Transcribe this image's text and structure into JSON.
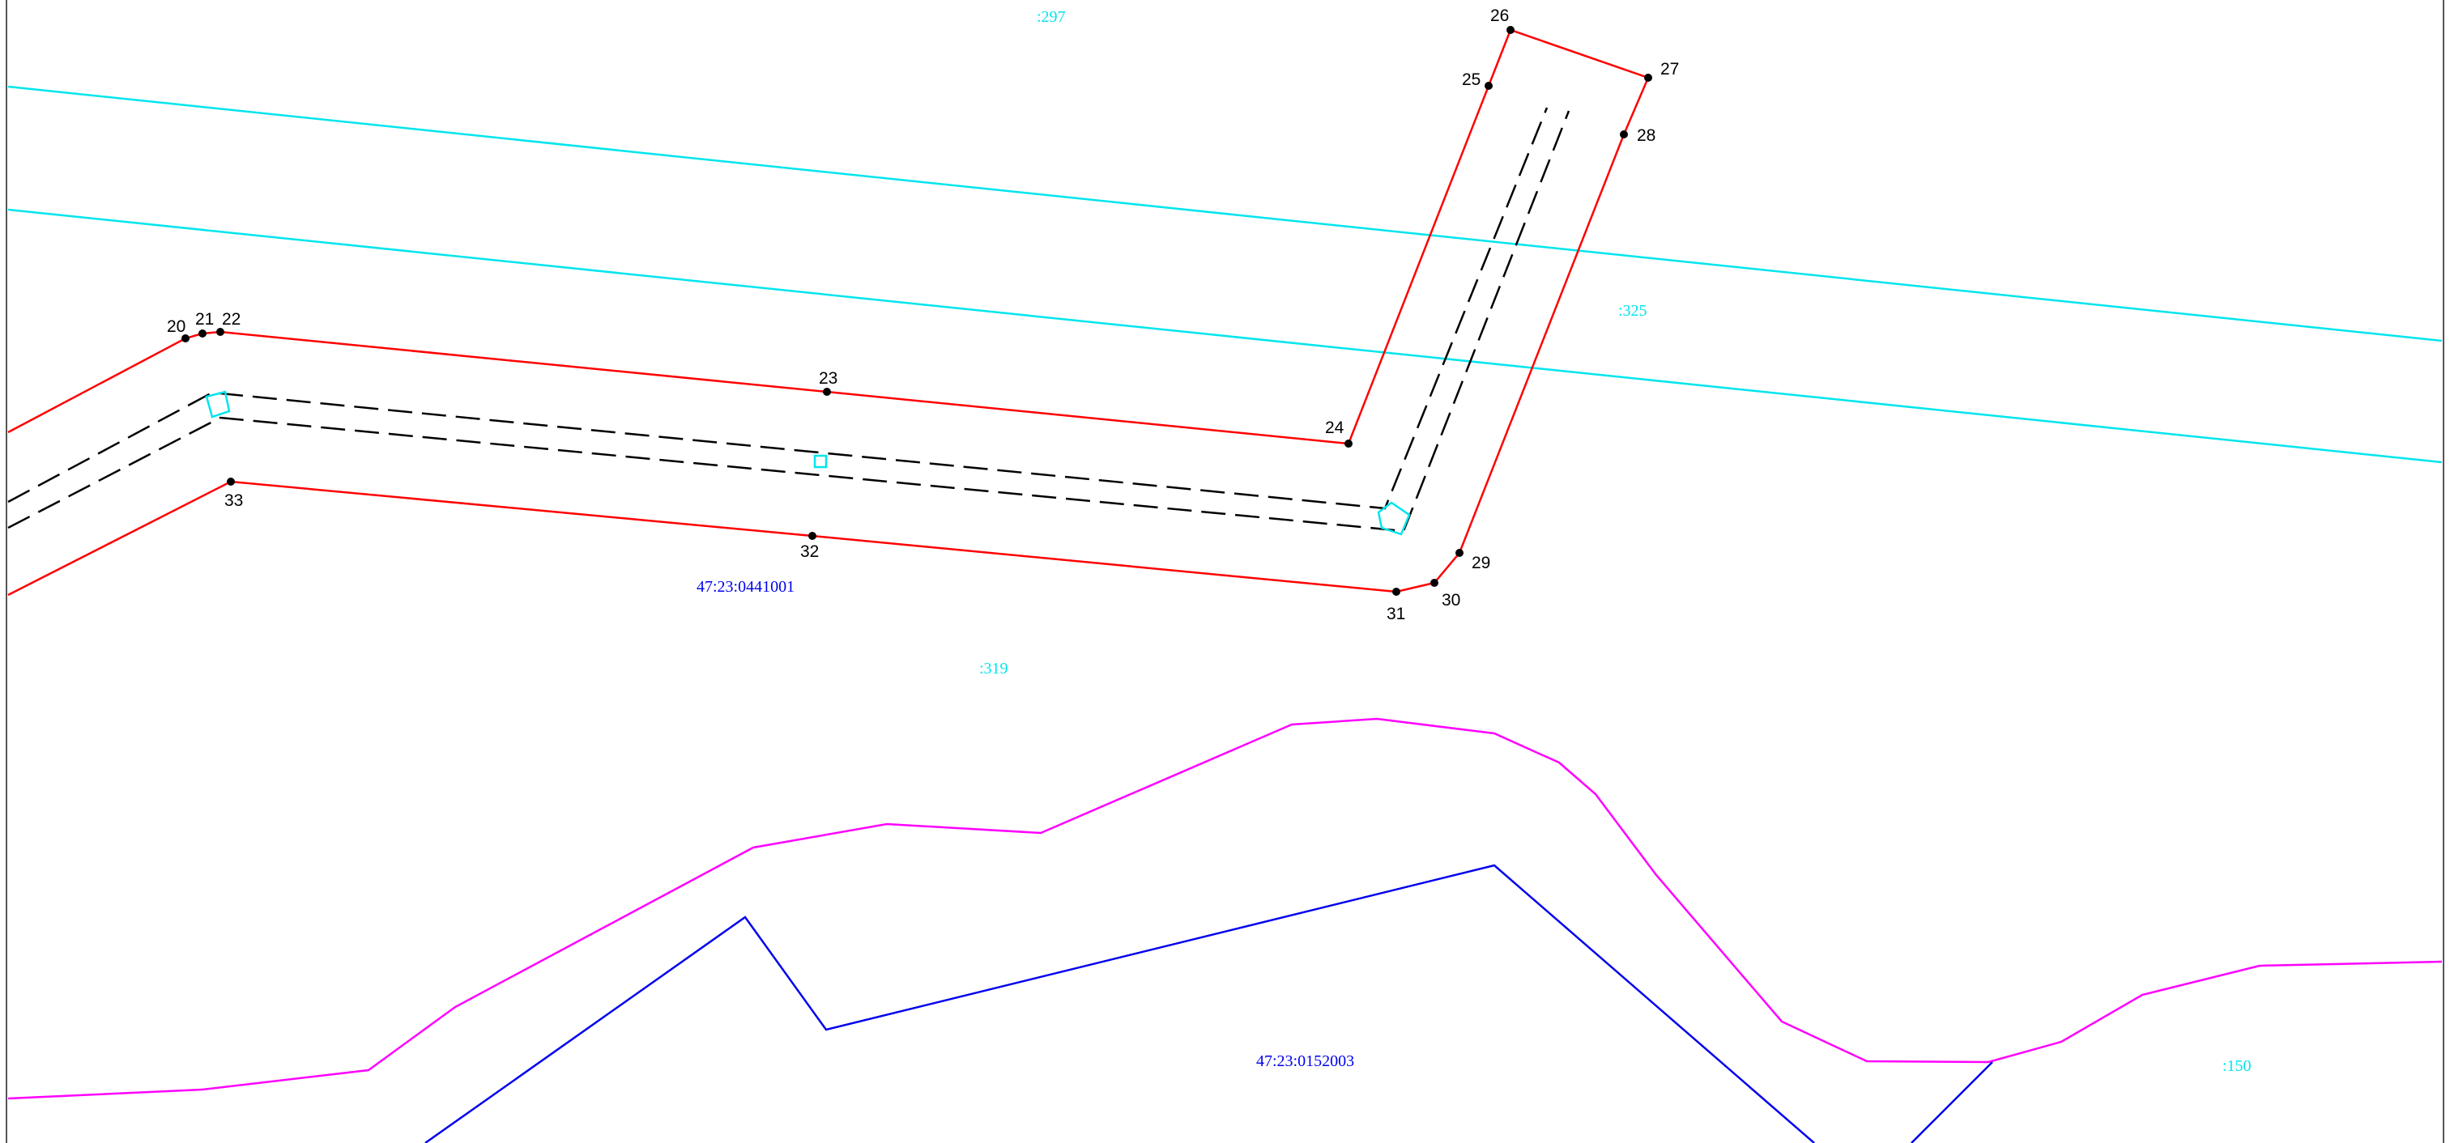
{
  "colors": {
    "boundary": "#ff0000",
    "cyan": "#00e5ee",
    "magenta": "#ff00ff",
    "blue": "#0000ee",
    "dashed": "#000000",
    "point": "#000000"
  },
  "points": [
    "20",
    "21",
    "22",
    "23",
    "24",
    "25",
    "26",
    "27",
    "28",
    "29",
    "30",
    "31",
    "32",
    "33"
  ],
  "parcels": {
    "p297": ":297",
    "p325": ":325",
    "p319": ":319",
    "p150": ":150",
    "block_upper": "47:23:0441001",
    "block_lower": "47:23:0152003"
  }
}
